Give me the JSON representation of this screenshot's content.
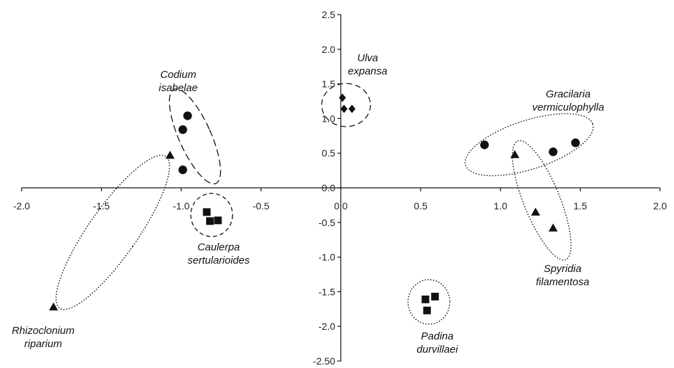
{
  "chart_data": {
    "type": "scatter",
    "title": "",
    "xlabel": "",
    "ylabel": "",
    "xlim": [
      -2.0,
      2.0
    ],
    "ylim": [
      -2.5,
      2.5
    ],
    "x_ticks": [
      "-2.0",
      "-1.5",
      "-1.0",
      "-0.5",
      "0.0",
      "0.5",
      "1.0",
      "1.5",
      "2.0"
    ],
    "y_ticks": [
      "2.5",
      "2.0",
      "1.5",
      "1.0",
      "0.5",
      "0.0",
      "-0.5",
      "-1.0",
      "-1.5",
      "-2.0",
      "-2.50"
    ],
    "grid": false,
    "axes_cross_at_origin": true,
    "color": "#111111",
    "groups": [
      {
        "label": "Codium isabelae",
        "label_lines": [
          "Codium",
          "isabelae"
        ],
        "marker": "circle",
        "ellipse_style": "dashed",
        "points": [
          {
            "x": -0.96,
            "y": 1.04
          },
          {
            "x": -0.99,
            "y": 0.84
          },
          {
            "x": -0.99,
            "y": 0.26
          }
        ]
      },
      {
        "label": "Ulva expansa",
        "label_lines": [
          "Ulva",
          "expansa"
        ],
        "marker": "diamond",
        "ellipse_style": "dashed",
        "points": [
          {
            "x": 0.01,
            "y": 1.3
          },
          {
            "x": 0.02,
            "y": 1.14
          },
          {
            "x": 0.07,
            "y": 1.14
          }
        ]
      },
      {
        "label": "Gracilaria vermiculophylla",
        "label_lines": [
          "Gracilaria",
          "vermiculophylla"
        ],
        "marker": "circle",
        "ellipse_style": "dotted",
        "points": [
          {
            "x": 0.9,
            "y": 0.62
          },
          {
            "x": 1.33,
            "y": 0.52
          },
          {
            "x": 1.47,
            "y": 0.65
          }
        ]
      },
      {
        "label": "Rhizoclonium riparium",
        "label_lines": [
          "Rhizoclonium",
          "riparium"
        ],
        "marker": "triangle",
        "ellipse_style": "dotted",
        "points": [
          {
            "x": -1.07,
            "y": 0.47
          },
          {
            "x": -1.8,
            "y": -1.72
          }
        ]
      },
      {
        "label": "Caulerpa sertularioides",
        "label_lines": [
          "Caulerpa",
          "sertularioides"
        ],
        "marker": "square",
        "ellipse_style": "dashed",
        "points": [
          {
            "x": -0.84,
            "y": -0.35
          },
          {
            "x": -0.82,
            "y": -0.48
          },
          {
            "x": -0.77,
            "y": -0.47
          }
        ]
      },
      {
        "label": "Spyridia filamentosa",
        "label_lines": [
          "Spyridia",
          "filamentosa"
        ],
        "marker": "triangle",
        "ellipse_style": "dotted",
        "points": [
          {
            "x": 1.09,
            "y": 0.48
          },
          {
            "x": 1.22,
            "y": -0.35
          },
          {
            "x": 1.33,
            "y": -0.58
          }
        ]
      },
      {
        "label": "Padina durvillaei",
        "label_lines": [
          "Padina",
          "durvillaei"
        ],
        "marker": "square",
        "ellipse_style": "dotted",
        "points": [
          {
            "x": 0.53,
            "y": -1.61
          },
          {
            "x": 0.59,
            "y": -1.57
          },
          {
            "x": 0.54,
            "y": -1.77
          }
        ]
      }
    ]
  }
}
